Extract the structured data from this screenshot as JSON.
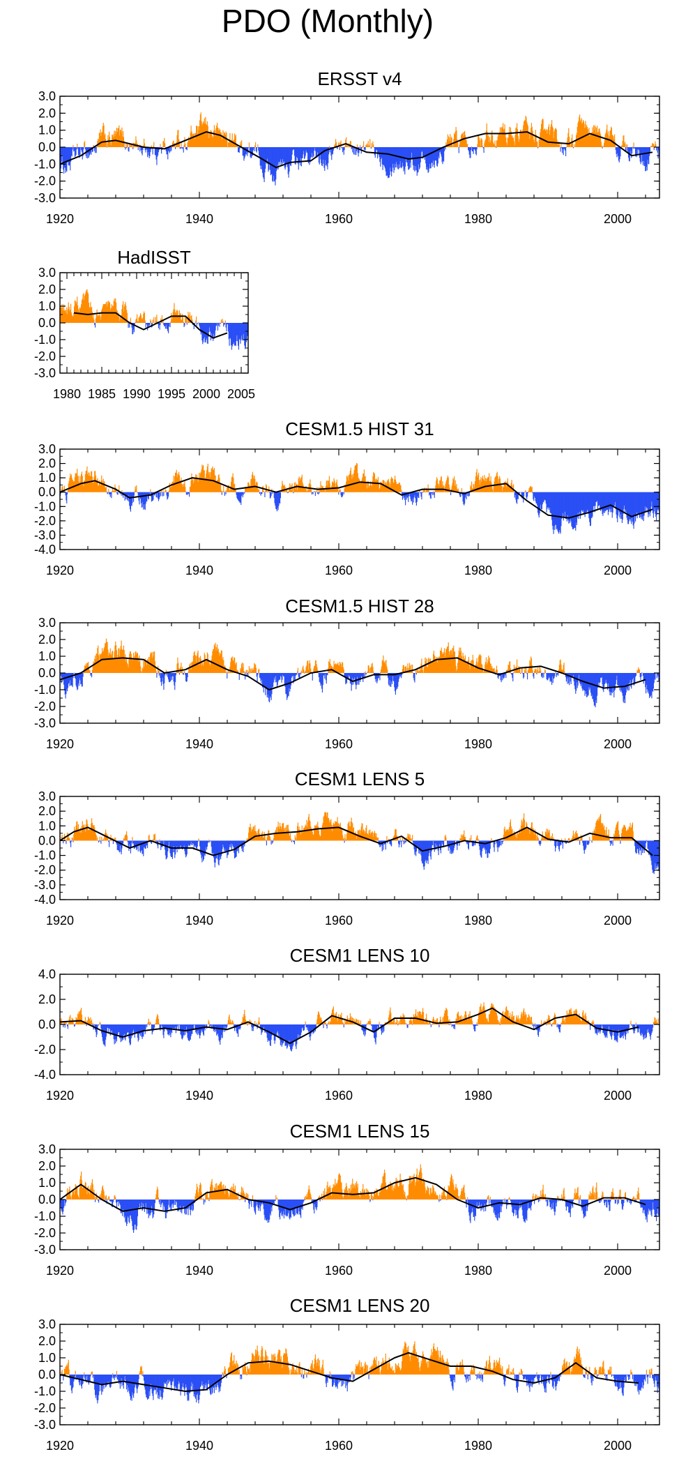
{
  "page": {
    "title": "PDO (Monthly)"
  },
  "colors": {
    "positive": "#ff8c00",
    "negative": "#2a4ff5",
    "smooth": "#000000",
    "frame": "#000000"
  },
  "chart_data": [
    {
      "type": "bar",
      "title": "ERSST v4",
      "x_range": [
        1920,
        2006
      ],
      "ylim": [
        -3,
        3
      ],
      "yticks": [
        3.0,
        2.0,
        1.0,
        0.0,
        -1.0,
        -2.0,
        -3.0
      ],
      "ytick_labels": [
        "3.0",
        "2.0",
        "1.0",
        "0.0",
        "-1.0",
        "-2.0",
        "-3.0"
      ],
      "xticks": [
        1920,
        1940,
        1960,
        1980,
        2000
      ],
      "xtick_labels": [
        "1920",
        "1940",
        "1960",
        "1980",
        "2000"
      ],
      "series_smoothed": {
        "x": [
          1920,
          1923,
          1926,
          1928,
          1930,
          1932,
          1935,
          1938,
          1941,
          1943,
          1946,
          1949,
          1951,
          1953,
          1956,
          1958,
          1961,
          1964,
          1967,
          1970,
          1972,
          1975,
          1978,
          1981,
          1984,
          1987,
          1990,
          1993,
          1996,
          1999,
          2002,
          2005
        ],
        "y": [
          -1.0,
          -0.5,
          0.3,
          0.4,
          0.2,
          0.0,
          -0.1,
          0.4,
          0.9,
          0.7,
          0.0,
          -0.7,
          -1.2,
          -0.9,
          -0.8,
          -0.2,
          0.2,
          -0.3,
          -0.4,
          -0.7,
          -0.6,
          0.0,
          0.5,
          0.8,
          0.8,
          0.9,
          0.3,
          0.2,
          0.8,
          0.4,
          -0.5,
          -0.3
        ]
      }
    },
    {
      "type": "bar",
      "title": "HadISST",
      "x_range": [
        1979,
        2006
      ],
      "ylim": [
        -3,
        3
      ],
      "yticks": [
        3.0,
        2.0,
        1.0,
        0.0,
        -1.0,
        -2.0,
        -3.0
      ],
      "ytick_labels": [
        "3.0",
        "2.0",
        "1.0",
        "0.0",
        "-1.0",
        "-2.0",
        "-3.0"
      ],
      "xticks": [
        1980,
        1985,
        1990,
        1995,
        2000,
        2005
      ],
      "xtick_labels": [
        "1980",
        "1985",
        "1990",
        "1995",
        "2000",
        "2005"
      ],
      "series_smoothed": {
        "x": [
          1981,
          1983,
          1985,
          1987,
          1989,
          1991,
          1993,
          1995,
          1997,
          1999,
          2001,
          2003
        ],
        "y": [
          0.6,
          0.5,
          0.6,
          0.6,
          0.0,
          -0.4,
          0.0,
          0.4,
          0.4,
          -0.4,
          -0.9,
          -0.6
        ]
      }
    },
    {
      "type": "bar",
      "title": "CESM1.5 HIST 31",
      "x_range": [
        1920,
        2006
      ],
      "ylim": [
        -4,
        3
      ],
      "yticks": [
        3.0,
        2.0,
        1.0,
        0.0,
        -1.0,
        -2.0,
        -3.0,
        -4.0
      ],
      "ytick_labels": [
        "3.0",
        "2.0",
        "1.0",
        "0.0",
        "-1.0",
        "-2.0",
        "-3.0",
        "-4.0"
      ],
      "xticks": [
        1920,
        1940,
        1960,
        1980,
        2000
      ],
      "xtick_labels": [
        "1920",
        "1940",
        "1960",
        "1980",
        "2000"
      ],
      "series_smoothed": {
        "x": [
          1920,
          1923,
          1925,
          1928,
          1930,
          1933,
          1936,
          1939,
          1942,
          1945,
          1948,
          1951,
          1954,
          1957,
          1960,
          1963,
          1966,
          1969,
          1972,
          1975,
          1978,
          1981,
          1984,
          1987,
          1990,
          1993,
          1996,
          1999,
          2002,
          2005
        ],
        "y": [
          0.0,
          0.6,
          0.8,
          0.2,
          -0.4,
          -0.2,
          0.5,
          1.0,
          0.8,
          0.2,
          0.4,
          0.0,
          0.4,
          0.2,
          0.3,
          0.7,
          0.6,
          -0.2,
          0.2,
          0.2,
          -0.1,
          0.4,
          0.6,
          -0.6,
          -1.6,
          -1.8,
          -1.4,
          -0.9,
          -1.7,
          -1.2
        ]
      }
    },
    {
      "type": "bar",
      "title": "CESM1.5 HIST 28",
      "x_range": [
        1920,
        2006
      ],
      "ylim": [
        -3,
        3
      ],
      "yticks": [
        3.0,
        2.0,
        1.0,
        0.0,
        -1.0,
        -2.0,
        -3.0
      ],
      "ytick_labels": [
        "3.0",
        "2.0",
        "1.0",
        "0.0",
        "-1.0",
        "-2.0",
        "-3.0"
      ],
      "xticks": [
        1920,
        1940,
        1960,
        1980,
        2000
      ],
      "xtick_labels": [
        "1920",
        "1940",
        "1960",
        "1980",
        "2000"
      ],
      "series_smoothed": {
        "x": [
          1920,
          1923,
          1926,
          1929,
          1932,
          1935,
          1938,
          1941,
          1944,
          1947,
          1950,
          1953,
          1956,
          1959,
          1962,
          1965,
          1968,
          1971,
          1974,
          1977,
          1980,
          1983,
          1986,
          1989,
          1992,
          1995,
          1998,
          2001,
          2004
        ],
        "y": [
          -0.4,
          0.0,
          0.8,
          0.9,
          0.8,
          0.0,
          0.2,
          0.8,
          0.2,
          -0.2,
          -1.0,
          -0.6,
          0.0,
          0.2,
          -0.5,
          -0.1,
          -0.1,
          0.2,
          0.8,
          0.9,
          0.3,
          -0.1,
          0.3,
          0.4,
          0.0,
          -0.5,
          -0.9,
          -0.8,
          -0.4
        ]
      }
    },
    {
      "type": "bar",
      "title": "CESM1 LENS 5",
      "x_range": [
        1920,
        2006
      ],
      "ylim": [
        -4,
        3
      ],
      "yticks": [
        3.0,
        2.0,
        1.0,
        0.0,
        -1.0,
        -2.0,
        -3.0,
        -4.0
      ],
      "ytick_labels": [
        "3.0",
        "2.0",
        "1.0",
        "0.0",
        "-1.0",
        "-2.0",
        "-3.0",
        "-4.0"
      ],
      "xticks": [
        1920,
        1940,
        1960,
        1980,
        2000
      ],
      "xtick_labels": [
        "1920",
        "1940",
        "1960",
        "1980",
        "2000"
      ],
      "series_smoothed": {
        "x": [
          1920,
          1922,
          1924,
          1927,
          1930,
          1933,
          1936,
          1939,
          1942,
          1945,
          1948,
          1951,
          1954,
          1957,
          1960,
          1963,
          1966,
          1969,
          1972,
          1975,
          1978,
          1981,
          1984,
          1987,
          1990,
          1993,
          1996,
          1999,
          2002,
          2005
        ],
        "y": [
          0.0,
          0.6,
          0.9,
          0.2,
          -0.5,
          0.0,
          -0.5,
          -0.5,
          -1.0,
          -0.6,
          0.3,
          0.5,
          0.6,
          0.8,
          0.9,
          0.3,
          -0.2,
          0.3,
          -0.7,
          -0.4,
          0.0,
          -0.2,
          0.2,
          0.9,
          0.1,
          -0.1,
          0.5,
          0.2,
          0.2,
          -1.0
        ]
      }
    },
    {
      "type": "bar",
      "title": "CESM1 LENS 10",
      "x_range": [
        1920,
        2006
      ],
      "ylim": [
        -4,
        4
      ],
      "yticks": [
        4.0,
        2.0,
        0.0,
        -2.0,
        -4.0
      ],
      "ytick_labels": [
        "4.0",
        "2.0",
        "0.0",
        "-2.0",
        "-4.0"
      ],
      "xticks": [
        1920,
        1940,
        1960,
        1980,
        2000
      ],
      "xtick_labels": [
        "1920",
        "1940",
        "1960",
        "1980",
        "2000"
      ],
      "series_smoothed": {
        "x": [
          1920,
          1923,
          1926,
          1929,
          1932,
          1935,
          1938,
          1941,
          1944,
          1947,
          1950,
          1953,
          1956,
          1959,
          1962,
          1965,
          1968,
          1971,
          1974,
          1977,
          1980,
          1982,
          1985,
          1988,
          1991,
          1994,
          1997,
          2000,
          2003
        ],
        "y": [
          0.2,
          0.3,
          -0.5,
          -1.0,
          -0.5,
          -0.3,
          -0.5,
          -0.2,
          -0.4,
          0.2,
          -0.6,
          -1.5,
          -0.6,
          0.7,
          0.2,
          -0.6,
          0.5,
          0.5,
          0.1,
          0.2,
          0.8,
          1.3,
          0.2,
          -0.4,
          0.5,
          0.8,
          -0.3,
          -0.6,
          -0.2
        ]
      }
    },
    {
      "type": "bar",
      "title": "CESM1 LENS 15",
      "x_range": [
        1920,
        2006
      ],
      "ylim": [
        -3,
        3
      ],
      "yticks": [
        3.0,
        2.0,
        1.0,
        0.0,
        -1.0,
        -2.0,
        -3.0
      ],
      "ytick_labels": [
        "3.0",
        "2.0",
        "1.0",
        "0.0",
        "-1.0",
        "-2.0",
        "-3.0"
      ],
      "xticks": [
        1920,
        1940,
        1960,
        1980,
        2000
      ],
      "xtick_labels": [
        "1920",
        "1940",
        "1960",
        "1980",
        "2000"
      ],
      "series_smoothed": {
        "x": [
          1920,
          1923,
          1926,
          1929,
          1932,
          1935,
          1938,
          1941,
          1944,
          1947,
          1950,
          1953,
          1956,
          1959,
          1962,
          1965,
          1968,
          1971,
          1974,
          1977,
          1980,
          1983,
          1986,
          1989,
          1992,
          1995,
          1998,
          2001,
          2004
        ],
        "y": [
          0.0,
          0.9,
          0.0,
          -0.7,
          -0.5,
          -0.7,
          -0.5,
          0.4,
          0.6,
          0.0,
          -0.2,
          -0.6,
          -0.2,
          0.4,
          0.3,
          0.4,
          1.0,
          1.3,
          0.9,
          0.0,
          -0.5,
          -0.2,
          -0.3,
          0.1,
          0.0,
          -0.4,
          0.1,
          0.1,
          -0.3
        ]
      }
    },
    {
      "type": "bar",
      "title": "CESM1 LENS 20",
      "x_range": [
        1920,
        2006
      ],
      "ylim": [
        -3,
        3
      ],
      "yticks": [
        3.0,
        2.0,
        1.0,
        0.0,
        -1.0,
        -2.0,
        -3.0
      ],
      "ytick_labels": [
        "3.0",
        "2.0",
        "1.0",
        "0.0",
        "-1.0",
        "-2.0",
        "-3.0"
      ],
      "xticks": [
        1920,
        1940,
        1960,
        1980,
        2000
      ],
      "xtick_labels": [
        "1920",
        "1940",
        "1960",
        "1980",
        "2000"
      ],
      "series_smoothed": {
        "x": [
          1920,
          1923,
          1926,
          1929,
          1932,
          1935,
          1938,
          1941,
          1944,
          1947,
          1950,
          1953,
          1956,
          1959,
          1962,
          1965,
          1968,
          1970,
          1973,
          1976,
          1979,
          1982,
          1985,
          1988,
          1991,
          1994,
          1997,
          2000,
          2003
        ],
        "y": [
          0.0,
          -0.3,
          -0.6,
          -0.4,
          -0.6,
          -0.8,
          -1.0,
          -0.9,
          0.0,
          0.7,
          0.8,
          0.6,
          0.2,
          -0.2,
          -0.4,
          0.3,
          1.0,
          1.3,
          0.9,
          0.5,
          0.5,
          0.2,
          -0.3,
          -0.5,
          -0.2,
          0.7,
          -0.2,
          -0.4,
          -0.5
        ]
      }
    }
  ]
}
